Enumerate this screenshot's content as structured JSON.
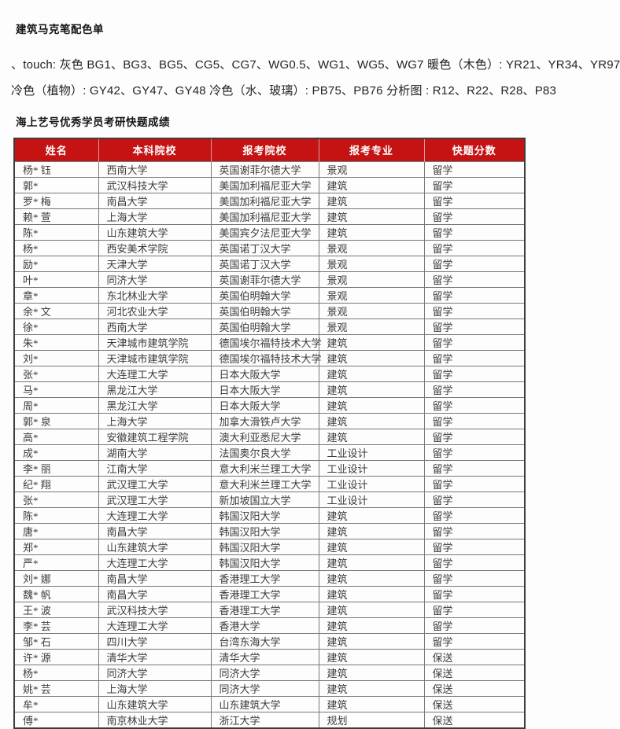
{
  "page": {
    "title": "建筑马克笔配色单",
    "color_list": {
      "line1": "、touch: 灰色 BG1、BG3、BG5、CG5、CG7、WG0.5、WG1、WG5、WG7 暖色（木色）: YR21、YR34、YR97",
      "line2": "冷色（植物）: GY42、GY47、GY48 冷色（水、玻璃）: PB75、PB76 分析图 : R12、R22、R28、P83"
    },
    "results_title": "海上艺号优秀学员考研快题成绩"
  },
  "table": {
    "colors": {
      "header_bg": "#c51313",
      "header_text": "#ffffff",
      "body_text": "#3b3b3b",
      "grid": "#787878"
    },
    "headers": [
      "姓名",
      "本科院校",
      "报考院校",
      "报考专业",
      "快题分数"
    ],
    "rows": [
      [
        "杨* 钰",
        "西南大学",
        "英国谢菲尔德大学",
        "景观",
        "留学"
      ],
      [
        "郭*",
        "武汉科技大学",
        "美国加利福尼亚大学",
        "建筑",
        "留学"
      ],
      [
        "罗* 梅",
        "南昌大学",
        "美国加利福尼亚大学",
        "建筑",
        "留学"
      ],
      [
        "赖* 萱",
        "上海大学",
        "美国加利福尼亚大学",
        "建筑",
        "留学"
      ],
      [
        "陈*",
        "山东建筑大学",
        "美国宾夕法尼亚大学",
        "建筑",
        "留学"
      ],
      [
        "杨*",
        "西安美术学院",
        "英国诺丁汉大学",
        "景观",
        "留学"
      ],
      [
        "励*",
        "天津大学",
        "英国诺丁汉大学",
        "景观",
        "留学"
      ],
      [
        "叶*",
        "同济大学",
        "英国谢菲尔德大学",
        "景观",
        "留学"
      ],
      [
        "章*",
        "东北林业大学",
        "英国伯明翰大学",
        "景观",
        "留学"
      ],
      [
        "余* 文",
        "河北农业大学",
        "英国伯明翰大学",
        "景观",
        "留学"
      ],
      [
        "徐*",
        "西南大学",
        "英国伯明翰大学",
        "景观",
        "留学"
      ],
      [
        "朱*",
        "天津城市建筑学院",
        "德国埃尔福特技术大学",
        "建筑",
        "留学"
      ],
      [
        "刘*",
        "天津城市建筑学院",
        "德国埃尔福特技术大学",
        "建筑",
        "留学"
      ],
      [
        "张*",
        "大连理工大学",
        "日本大阪大学",
        "建筑",
        "留学"
      ],
      [
        "马*",
        "黑龙江大学",
        "日本大阪大学",
        "建筑",
        "留学"
      ],
      [
        "周*",
        "黑龙江大学",
        "日本大阪大学",
        "建筑",
        "留学"
      ],
      [
        "郭* 泉",
        "上海大学",
        "加拿大滑铁卢大学",
        "建筑",
        "留学"
      ],
      [
        "高*",
        "安徽建筑工程学院",
        "澳大利亚悉尼大学",
        "建筑",
        "留学"
      ],
      [
        "成*",
        "湖南大学",
        "法国奥尔良大学",
        "工业设计",
        "留学"
      ],
      [
        "李* 丽",
        "江南大学",
        "意大利米兰理工大学",
        "工业设计",
        "留学"
      ],
      [
        "纪* 翔",
        "武汉理工大学",
        "意大利米兰理工大学",
        "工业设计",
        "留学"
      ],
      [
        "张*",
        "武汉理工大学",
        "新加坡国立大学",
        "工业设计",
        "留学"
      ],
      [
        "陈*",
        "大连理工大学",
        "韩国汉阳大学",
        "建筑",
        "留学"
      ],
      [
        "唐*",
        "南昌大学",
        "韩国汉阳大学",
        "建筑",
        "留学"
      ],
      [
        "郑*",
        "山东建筑大学",
        "韩国汉阳大学",
        "建筑",
        "留学"
      ],
      [
        "严*",
        "大连理工大学",
        "韩国汉阳大学",
        "建筑",
        "留学"
      ],
      [
        "刘* 娜",
        "南昌大学",
        "香港理工大学",
        "建筑",
        "留学"
      ],
      [
        "魏* 帆",
        "南昌大学",
        "香港理工大学",
        "建筑",
        "留学"
      ],
      [
        "王* 波",
        "武汉科技大学",
        "香港理工大学",
        "建筑",
        "留学"
      ],
      [
        "李* 芸",
        "大连理工大学",
        "香港大学",
        "建筑",
        "留学"
      ],
      [
        "邹* 石",
        "四川大学",
        "台湾东海大学",
        "建筑",
        "留学"
      ],
      [
        "许* 源",
        "清华大学",
        "清华大学",
        "建筑",
        "保送"
      ],
      [
        "杨*",
        "同济大学",
        "同济大学",
        "建筑",
        "保送"
      ],
      [
        "姚* 芸",
        "上海大学",
        "同济大学",
        "建筑",
        "保送"
      ],
      [
        "牟*",
        "山东建筑大学",
        "山东建筑大学",
        "建筑",
        "保送"
      ],
      [
        "傅*",
        "南京林业大学",
        "浙江大学",
        "规划",
        "保送"
      ]
    ]
  }
}
